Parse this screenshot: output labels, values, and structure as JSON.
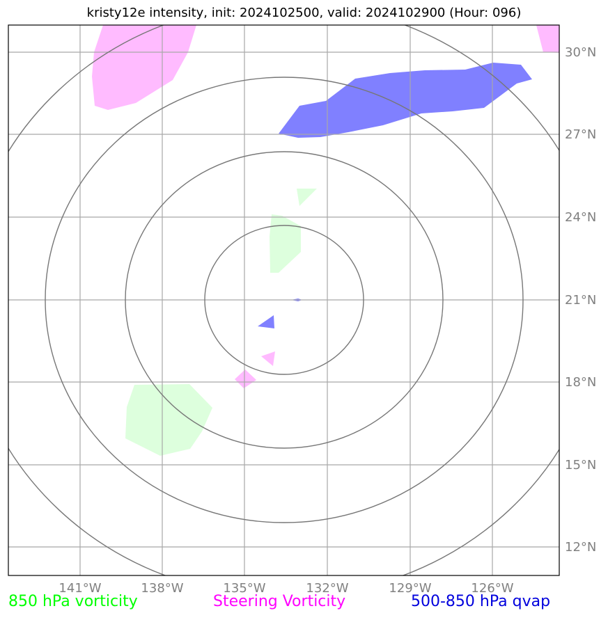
{
  "title": "kristy12e intensity, init: 2024102500, valid: 2024102900 (Hour: 096)",
  "lon_labels": [
    "141°W",
    "138°W",
    "135°W",
    "132°W",
    "129°W",
    "126°W"
  ],
  "lat_labels": [
    "30°N",
    "27°N",
    "24°N",
    "21°N",
    "18°N",
    "15°N",
    "12°N"
  ],
  "legend": {
    "vorticity_850": "850 hPa vorticity",
    "steering_vorticity": "Steering Vorticity",
    "qvap": "500-850 hPa qvap"
  },
  "colors": {
    "vorticity_850": "#ddffdd",
    "steering_vorticity": "#ffbbff",
    "qvap": "#8080ff",
    "range_rings": "#777777",
    "gridlines": "#aaaaaa"
  }
}
